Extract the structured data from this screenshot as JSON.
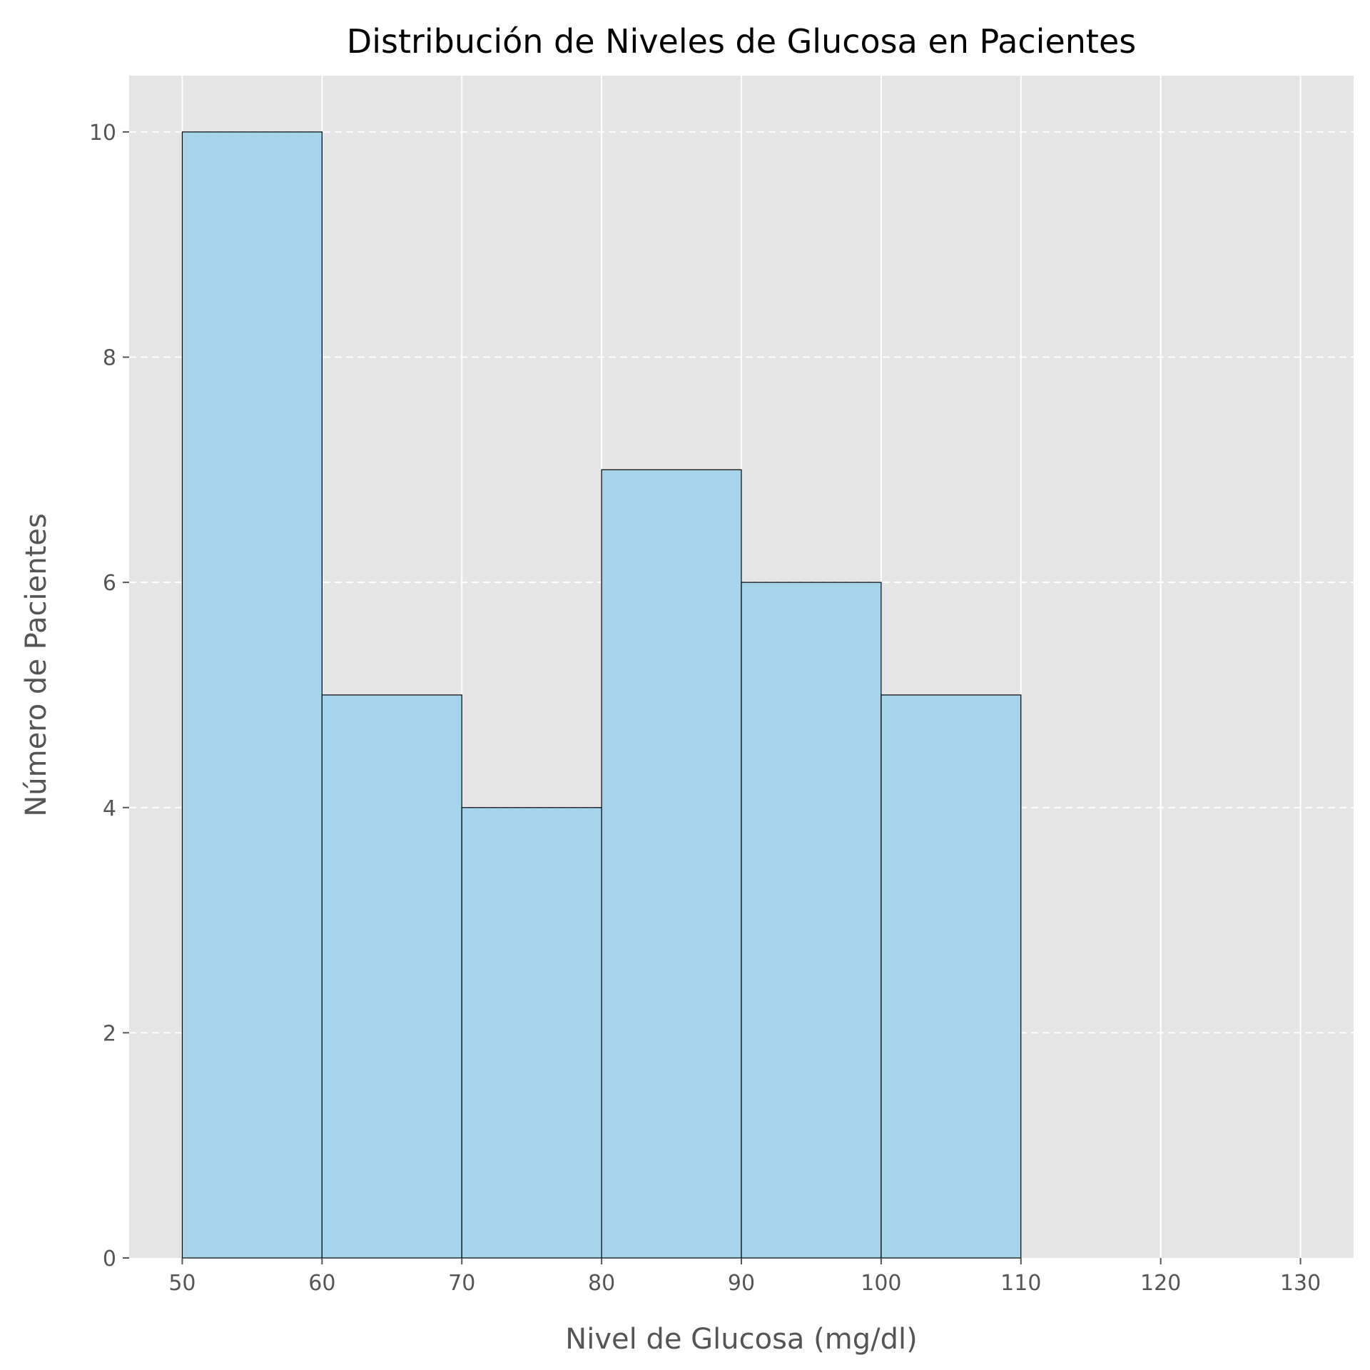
{
  "chart_data": {
    "type": "bar",
    "title": "Distribución de Niveles de Glucosa en Pacientes",
    "xlabel": "Nivel de Glucosa (mg/dl)",
    "ylabel": "Número de Pacientes",
    "bins": [
      {
        "start": 50,
        "end": 60,
        "count": 10
      },
      {
        "start": 60,
        "end": 70,
        "count": 5
      },
      {
        "start": 70,
        "end": 80,
        "count": 4
      },
      {
        "start": 80,
        "end": 90,
        "count": 7
      },
      {
        "start": 90,
        "end": 100,
        "count": 6
      },
      {
        "start": 100,
        "end": 110,
        "count": 5
      }
    ],
    "xlim": [
      46.2,
      133.8
    ],
    "ylim": [
      0,
      10.5
    ],
    "xticks": [
      50,
      60,
      70,
      80,
      90,
      100,
      110,
      120,
      130
    ],
    "yticks": [
      0,
      2,
      4,
      6,
      8,
      10
    ],
    "grid": {
      "x": "solid",
      "y": "dashed"
    },
    "colors": {
      "bar_fill": "#a6d4ea",
      "bar_edge": "#000000",
      "plot_background": "#e5e5e5",
      "grid": "#ffffff"
    }
  }
}
